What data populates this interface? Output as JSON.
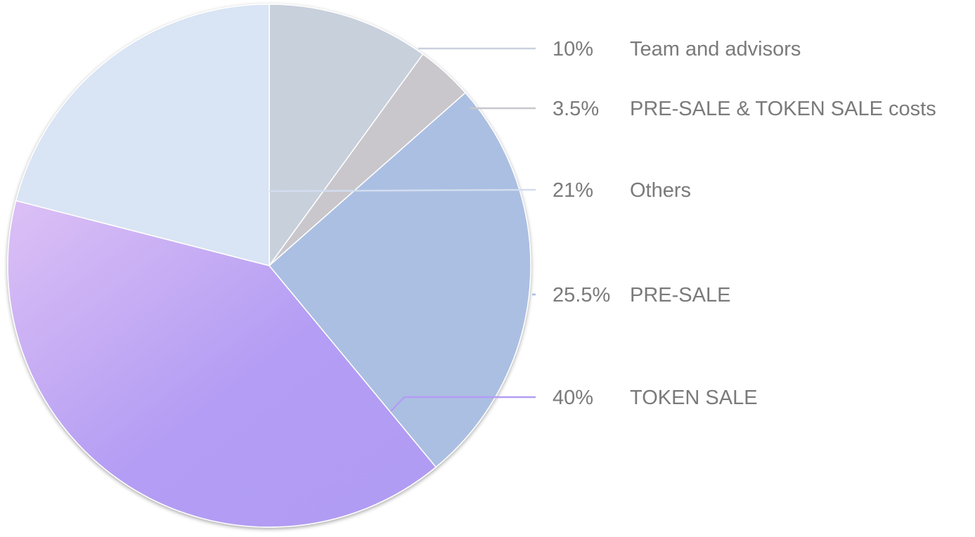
{
  "chart_data": {
    "type": "pie",
    "slices": [
      {
        "label": "Team and advisors",
        "value": 10,
        "value_label": "10%",
        "color": "#c8d0dc"
      },
      {
        "label": "PRE-SALE & TOKEN SALE costs",
        "value": 3.5,
        "value_label": "3.5%",
        "color": "#c9c7cc"
      },
      {
        "label": "PRE-SALE",
        "value": 25.5,
        "value_label": "25.5%",
        "color": "#abbfe2"
      },
      {
        "label": "TOKEN SALE",
        "value": 40,
        "value_label": "40%",
        "color": "#b49df4"
      },
      {
        "label": "Others",
        "value": 21,
        "value_label": "21%",
        "color": "#d9e4f4"
      }
    ],
    "legend_order": [
      "Team and advisors",
      "PRE-SALE & TOKEN SALE costs",
      "Others",
      "PRE-SALE",
      "TOKEN SALE"
    ],
    "legend_placement": "right",
    "start_angle": "top",
    "direction": "clockwise"
  }
}
